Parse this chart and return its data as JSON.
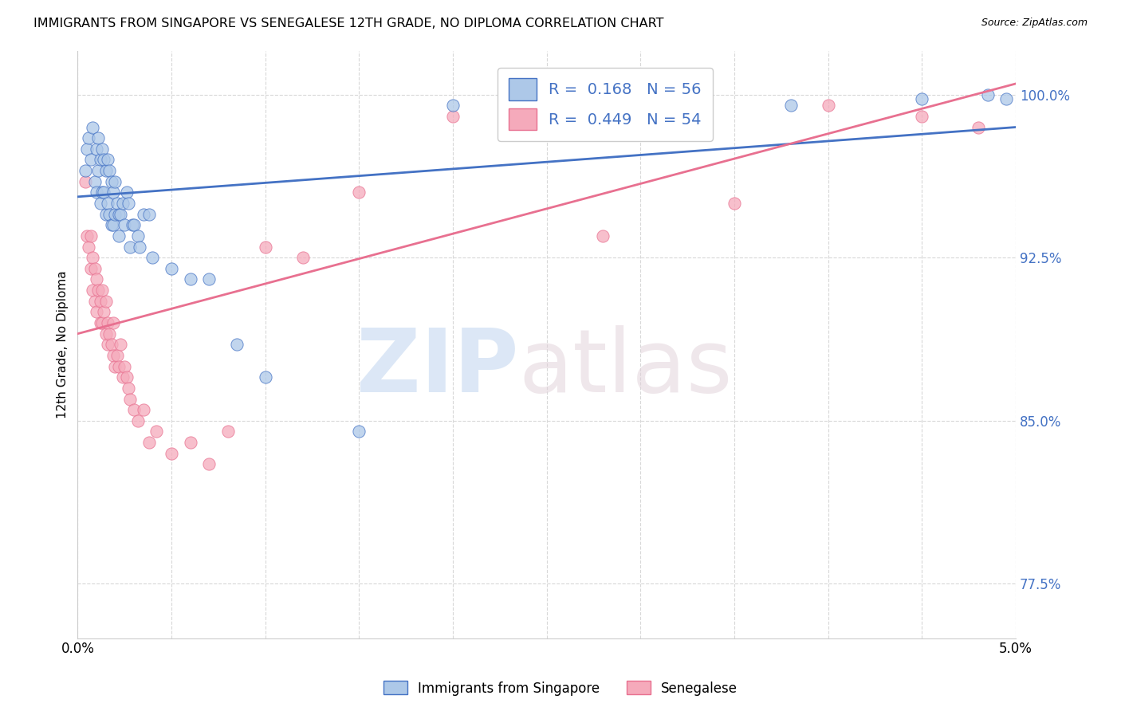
{
  "title": "IMMIGRANTS FROM SINGAPORE VS SENEGALESE 12TH GRADE, NO DIPLOMA CORRELATION CHART",
  "source": "Source: ZipAtlas.com",
  "ylabel_label": "12th Grade, No Diploma",
  "xmin": 0.0,
  "xmax": 5.0,
  "ymin": 75.0,
  "ymax": 102.0,
  "yticks": [
    77.5,
    85.0,
    92.5,
    100.0
  ],
  "ytick_labels": [
    "77.5%",
    "85.0%",
    "92.5%",
    "100.0%"
  ],
  "grid_color": "#d8d8d8",
  "background_color": "#ffffff",
  "singapore_color": "#adc8e8",
  "senegalese_color": "#f5aabb",
  "singapore_line_color": "#4472c4",
  "senegalese_line_color": "#e87090",
  "singapore_x": [
    0.04,
    0.05,
    0.06,
    0.07,
    0.08,
    0.09,
    0.1,
    0.1,
    0.11,
    0.11,
    0.12,
    0.12,
    0.13,
    0.13,
    0.14,
    0.14,
    0.15,
    0.15,
    0.16,
    0.16,
    0.17,
    0.17,
    0.18,
    0.18,
    0.19,
    0.19,
    0.2,
    0.2,
    0.21,
    0.22,
    0.22,
    0.23,
    0.24,
    0.25,
    0.26,
    0.27,
    0.28,
    0.29,
    0.3,
    0.32,
    0.33,
    0.35,
    0.38,
    0.4,
    0.5,
    0.6,
    0.7,
    0.85,
    1.0,
    1.5,
    2.0,
    3.0,
    3.8,
    4.5,
    4.85,
    4.95
  ],
  "singapore_y": [
    96.5,
    97.5,
    98.0,
    97.0,
    98.5,
    96.0,
    97.5,
    95.5,
    98.0,
    96.5,
    97.0,
    95.0,
    97.5,
    95.5,
    97.0,
    95.5,
    96.5,
    94.5,
    97.0,
    95.0,
    96.5,
    94.5,
    96.0,
    94.0,
    95.5,
    94.0,
    96.0,
    94.5,
    95.0,
    94.5,
    93.5,
    94.5,
    95.0,
    94.0,
    95.5,
    95.0,
    93.0,
    94.0,
    94.0,
    93.5,
    93.0,
    94.5,
    94.5,
    92.5,
    92.0,
    91.5,
    91.5,
    88.5,
    87.0,
    84.5,
    99.5,
    99.5,
    99.5,
    99.8,
    100.0,
    99.8
  ],
  "senegalese_x": [
    0.04,
    0.05,
    0.06,
    0.07,
    0.07,
    0.08,
    0.08,
    0.09,
    0.09,
    0.1,
    0.1,
    0.11,
    0.12,
    0.12,
    0.13,
    0.13,
    0.14,
    0.15,
    0.15,
    0.16,
    0.16,
    0.17,
    0.18,
    0.19,
    0.19,
    0.2,
    0.21,
    0.22,
    0.23,
    0.24,
    0.25,
    0.26,
    0.27,
    0.28,
    0.3,
    0.32,
    0.35,
    0.38,
    0.42,
    0.5,
    0.6,
    0.7,
    0.8,
    1.0,
    1.2,
    1.5,
    2.0,
    2.5,
    3.0,
    4.0,
    4.5,
    4.8,
    2.8,
    3.5
  ],
  "senegalese_y": [
    96.0,
    93.5,
    93.0,
    93.5,
    92.0,
    92.5,
    91.0,
    92.0,
    90.5,
    91.5,
    90.0,
    91.0,
    90.5,
    89.5,
    91.0,
    89.5,
    90.0,
    90.5,
    89.0,
    89.5,
    88.5,
    89.0,
    88.5,
    89.5,
    88.0,
    87.5,
    88.0,
    87.5,
    88.5,
    87.0,
    87.5,
    87.0,
    86.5,
    86.0,
    85.5,
    85.0,
    85.5,
    84.0,
    84.5,
    83.5,
    84.0,
    83.0,
    84.5,
    93.0,
    92.5,
    95.5,
    99.0,
    99.5,
    98.5,
    99.5,
    99.0,
    98.5,
    93.5,
    95.0
  ],
  "sg_reg_x0": 0.0,
  "sg_reg_y0": 95.3,
  "sg_reg_x1": 5.0,
  "sg_reg_y1": 98.5,
  "sn_reg_x0": 0.0,
  "sn_reg_y0": 89.0,
  "sn_reg_x1": 5.0,
  "sn_reg_y1": 100.5
}
